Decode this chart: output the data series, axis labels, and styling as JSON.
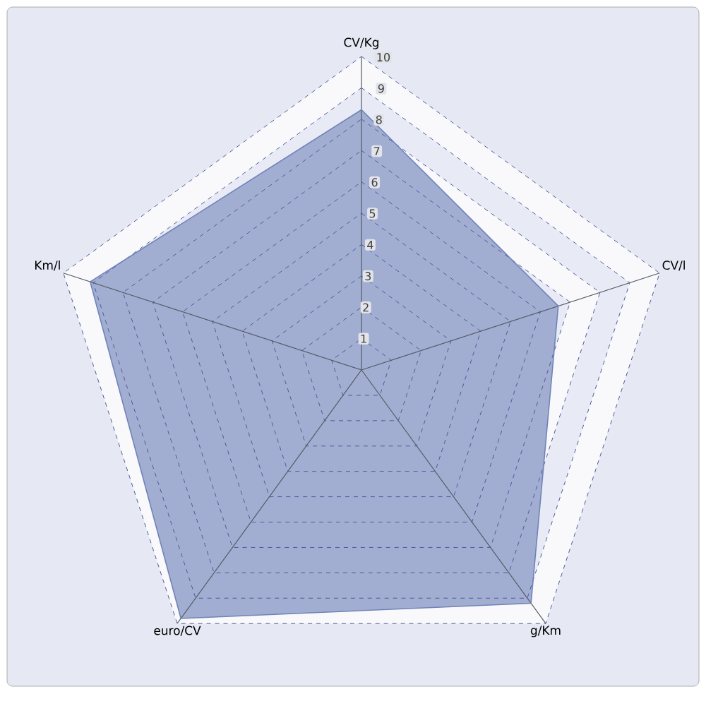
{
  "chart_data": {
    "type": "radar",
    "categories": [
      "CV/Kg",
      "CV/l",
      "g/Km",
      "euro/CV",
      "Km/l"
    ],
    "series": [
      {
        "color": "#7083b8",
        "values": [
          8.3,
          6.6,
          9.2,
          9.8,
          9.1
        ]
      }
    ],
    "ylim": [
      0,
      10
    ],
    "yticks": [
      1,
      2,
      3,
      4,
      5,
      6,
      7,
      8,
      9,
      10
    ],
    "grid": true
  }
}
